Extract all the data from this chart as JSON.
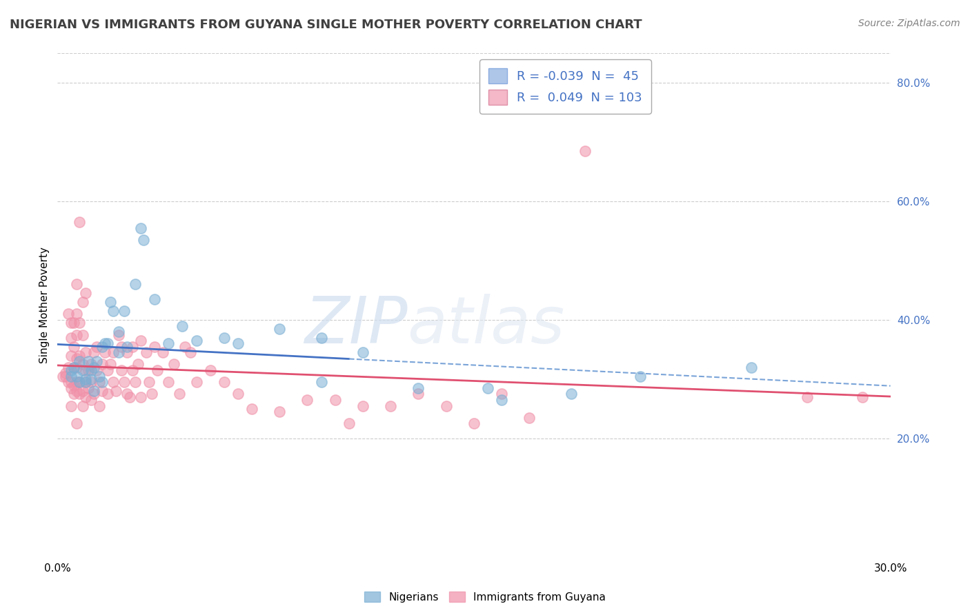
{
  "title": "NIGERIAN VS IMMIGRANTS FROM GUYANA SINGLE MOTHER POVERTY CORRELATION CHART",
  "source": "Source: ZipAtlas.com",
  "ylabel": "Single Mother Poverty",
  "xlim": [
    0.0,
    0.3
  ],
  "ylim": [
    0.0,
    0.85
  ],
  "watermark_zip": "ZIP",
  "watermark_atlas": "atlas",
  "nigerians_color": "#7bafd4",
  "guyana_color": "#f090a8",
  "nigerian_R": -0.039,
  "guyana_R": 0.049,
  "nigerian_N": 45,
  "guyana_N": 103,
  "nigerian_scatter": [
    [
      0.005,
      0.305
    ],
    [
      0.005,
      0.315
    ],
    [
      0.006,
      0.32
    ],
    [
      0.007,
      0.305
    ],
    [
      0.008,
      0.33
    ],
    [
      0.008,
      0.295
    ],
    [
      0.009,
      0.315
    ],
    [
      0.01,
      0.3
    ],
    [
      0.01,
      0.295
    ],
    [
      0.011,
      0.33
    ],
    [
      0.012,
      0.3
    ],
    [
      0.012,
      0.315
    ],
    [
      0.013,
      0.32
    ],
    [
      0.013,
      0.28
    ],
    [
      0.014,
      0.33
    ],
    [
      0.015,
      0.305
    ],
    [
      0.016,
      0.295
    ],
    [
      0.016,
      0.355
    ],
    [
      0.017,
      0.36
    ],
    [
      0.018,
      0.36
    ],
    [
      0.019,
      0.43
    ],
    [
      0.02,
      0.415
    ],
    [
      0.022,
      0.345
    ],
    [
      0.022,
      0.38
    ],
    [
      0.024,
      0.415
    ],
    [
      0.025,
      0.355
    ],
    [
      0.028,
      0.46
    ],
    [
      0.03,
      0.555
    ],
    [
      0.031,
      0.535
    ],
    [
      0.035,
      0.435
    ],
    [
      0.04,
      0.36
    ],
    [
      0.045,
      0.39
    ],
    [
      0.05,
      0.365
    ],
    [
      0.06,
      0.37
    ],
    [
      0.065,
      0.36
    ],
    [
      0.08,
      0.385
    ],
    [
      0.095,
      0.37
    ],
    [
      0.11,
      0.345
    ],
    [
      0.13,
      0.285
    ],
    [
      0.155,
      0.285
    ],
    [
      0.16,
      0.265
    ],
    [
      0.185,
      0.275
    ],
    [
      0.21,
      0.305
    ],
    [
      0.25,
      0.32
    ],
    [
      0.095,
      0.295
    ]
  ],
  "guyana_scatter": [
    [
      0.002,
      0.305
    ],
    [
      0.003,
      0.31
    ],
    [
      0.003,
      0.305
    ],
    [
      0.004,
      0.295
    ],
    [
      0.004,
      0.41
    ],
    [
      0.004,
      0.32
    ],
    [
      0.005,
      0.295
    ],
    [
      0.005,
      0.34
    ],
    [
      0.005,
      0.37
    ],
    [
      0.005,
      0.255
    ],
    [
      0.005,
      0.285
    ],
    [
      0.005,
      0.395
    ],
    [
      0.006,
      0.32
    ],
    [
      0.006,
      0.29
    ],
    [
      0.006,
      0.395
    ],
    [
      0.006,
      0.355
    ],
    [
      0.006,
      0.275
    ],
    [
      0.007,
      0.28
    ],
    [
      0.007,
      0.32
    ],
    [
      0.007,
      0.335
    ],
    [
      0.007,
      0.375
    ],
    [
      0.007,
      0.225
    ],
    [
      0.007,
      0.295
    ],
    [
      0.007,
      0.41
    ],
    [
      0.007,
      0.46
    ],
    [
      0.008,
      0.275
    ],
    [
      0.008,
      0.295
    ],
    [
      0.008,
      0.34
    ],
    [
      0.008,
      0.395
    ],
    [
      0.008,
      0.565
    ],
    [
      0.009,
      0.28
    ],
    [
      0.009,
      0.325
    ],
    [
      0.009,
      0.375
    ],
    [
      0.009,
      0.255
    ],
    [
      0.009,
      0.43
    ],
    [
      0.01,
      0.295
    ],
    [
      0.01,
      0.315
    ],
    [
      0.01,
      0.27
    ],
    [
      0.01,
      0.345
    ],
    [
      0.01,
      0.445
    ],
    [
      0.011,
      0.315
    ],
    [
      0.011,
      0.285
    ],
    [
      0.012,
      0.325
    ],
    [
      0.012,
      0.295
    ],
    [
      0.012,
      0.265
    ],
    [
      0.013,
      0.345
    ],
    [
      0.013,
      0.275
    ],
    [
      0.014,
      0.315
    ],
    [
      0.014,
      0.355
    ],
    [
      0.015,
      0.295
    ],
    [
      0.015,
      0.255
    ],
    [
      0.016,
      0.325
    ],
    [
      0.016,
      0.28
    ],
    [
      0.017,
      0.345
    ],
    [
      0.018,
      0.315
    ],
    [
      0.018,
      0.275
    ],
    [
      0.019,
      0.325
    ],
    [
      0.02,
      0.345
    ],
    [
      0.02,
      0.295
    ],
    [
      0.021,
      0.28
    ],
    [
      0.022,
      0.375
    ],
    [
      0.023,
      0.355
    ],
    [
      0.023,
      0.315
    ],
    [
      0.024,
      0.295
    ],
    [
      0.025,
      0.345
    ],
    [
      0.025,
      0.275
    ],
    [
      0.026,
      0.27
    ],
    [
      0.027,
      0.315
    ],
    [
      0.027,
      0.355
    ],
    [
      0.028,
      0.295
    ],
    [
      0.029,
      0.325
    ],
    [
      0.03,
      0.365
    ],
    [
      0.03,
      0.27
    ],
    [
      0.032,
      0.345
    ],
    [
      0.033,
      0.295
    ],
    [
      0.034,
      0.275
    ],
    [
      0.035,
      0.355
    ],
    [
      0.036,
      0.315
    ],
    [
      0.038,
      0.345
    ],
    [
      0.04,
      0.295
    ],
    [
      0.042,
      0.325
    ],
    [
      0.044,
      0.275
    ],
    [
      0.046,
      0.355
    ],
    [
      0.048,
      0.345
    ],
    [
      0.05,
      0.295
    ],
    [
      0.055,
      0.315
    ],
    [
      0.06,
      0.295
    ],
    [
      0.065,
      0.275
    ],
    [
      0.07,
      0.25
    ],
    [
      0.08,
      0.245
    ],
    [
      0.09,
      0.265
    ],
    [
      0.1,
      0.265
    ],
    [
      0.11,
      0.255
    ],
    [
      0.12,
      0.255
    ],
    [
      0.13,
      0.275
    ],
    [
      0.14,
      0.255
    ],
    [
      0.15,
      0.225
    ],
    [
      0.16,
      0.275
    ],
    [
      0.17,
      0.235
    ],
    [
      0.19,
      0.685
    ],
    [
      0.27,
      0.27
    ],
    [
      0.29,
      0.27
    ],
    [
      0.105,
      0.225
    ]
  ],
  "background_color": "#ffffff",
  "grid_color": "#cccccc",
  "title_fontsize": 13,
  "axis_label_fontsize": 11,
  "tick_fontsize": 11,
  "legend_box_color": "#aec6e8",
  "legend_box_color2": "#f4b8c8",
  "trend_nigerian_solid_xlim": [
    0.0,
    0.105
  ],
  "trend_nigerian_dashed_xlim": [
    0.105,
    0.3
  ],
  "trend_guyana_xlim": [
    0.0,
    0.3
  ]
}
